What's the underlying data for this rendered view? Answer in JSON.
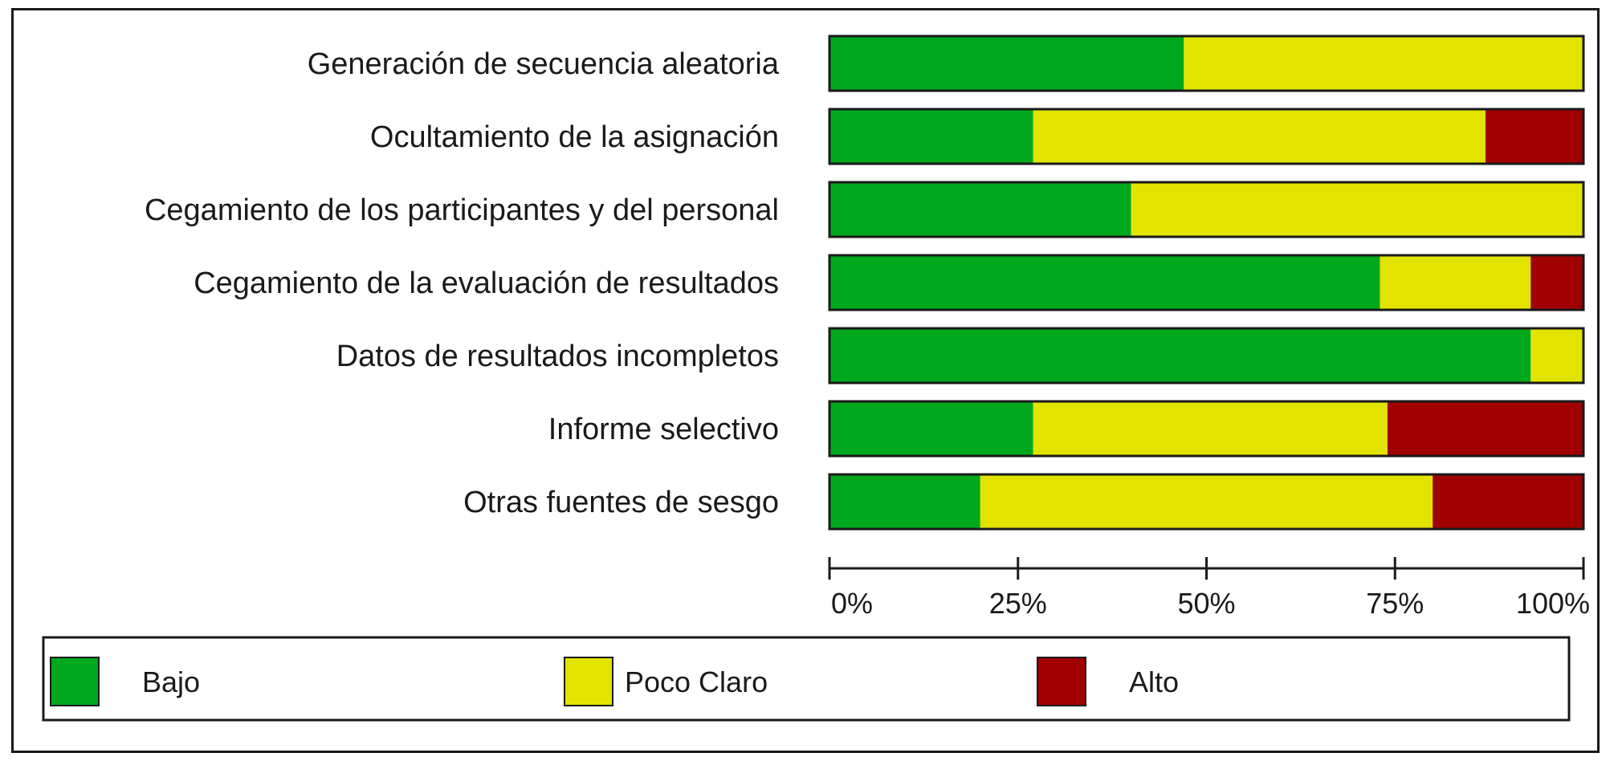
{
  "chart_data": {
    "type": "bar",
    "orientation": "horizontal",
    "stacked": true,
    "percent": true,
    "categories": [
      "Generación de secuencia aleatoria",
      "Ocultamiento de la asignación",
      "Cegamiento de los participantes y del personal",
      "Cegamiento de la evaluación de resultados",
      "Datos de resultados incompletos",
      "Informe selectivo",
      "Otras fuentes de sesgo"
    ],
    "series": [
      {
        "name": "Bajo",
        "color": "#00a81e",
        "values": [
          47,
          27,
          40,
          73,
          93,
          27,
          20
        ]
      },
      {
        "name": "Poco Claro",
        "color": "#e3e300",
        "values": [
          53,
          60,
          60,
          20,
          7,
          47,
          60
        ]
      },
      {
        "name": "Alto",
        "color": "#a10000",
        "values": [
          0,
          13,
          0,
          7,
          0,
          26,
          20
        ]
      }
    ],
    "xlim": [
      0,
      100
    ],
    "xticks": [
      "0%",
      "25%",
      "50%",
      "75%",
      "100%"
    ],
    "title": "",
    "xlabel": "",
    "ylabel": "",
    "grid": false,
    "legend_position": "bottom"
  }
}
